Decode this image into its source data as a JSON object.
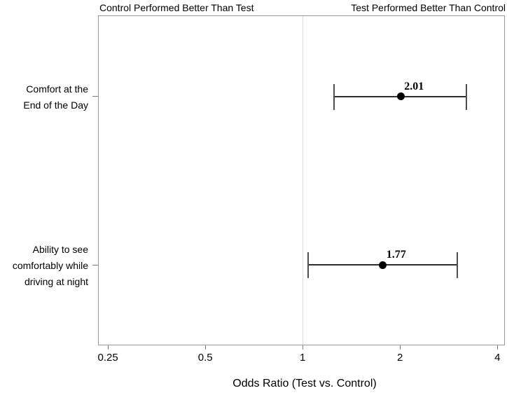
{
  "chart_data": {
    "type": "scatter",
    "subtype": "forest-plot-odds-ratios-with-95pct-ci",
    "title": "",
    "xlabel": "Odds Ratio (Test vs. Control)",
    "ylabel": "",
    "x_scale": "log2",
    "xlim": [
      0.233,
      4.22
    ],
    "x_ticks": [
      0.25,
      0.5,
      1,
      2,
      4
    ],
    "x_tick_labels": [
      "0.25",
      "0.5",
      "1",
      "2",
      "4"
    ],
    "reference_line_x": 1,
    "grid": false,
    "legend": "none",
    "column_header_left": "Control Performed Better Than Test",
    "column_header_right": "Test Performed Better Than Control",
    "rows": [
      {
        "label_lines": [
          "Comfort at the",
          "End of the Day"
        ],
        "odds_ratio": 2.01,
        "value_label": "2.01",
        "ci_low": 1.25,
        "ci_high": 3.2,
        "y_frac": 0.246
      },
      {
        "label_lines": [
          "Ability to see",
          "comfortably while",
          "driving at night"
        ],
        "odds_ratio": 1.77,
        "value_label": "1.77",
        "ci_low": 1.04,
        "ci_high": 3.0,
        "y_frac": 0.756
      }
    ]
  }
}
